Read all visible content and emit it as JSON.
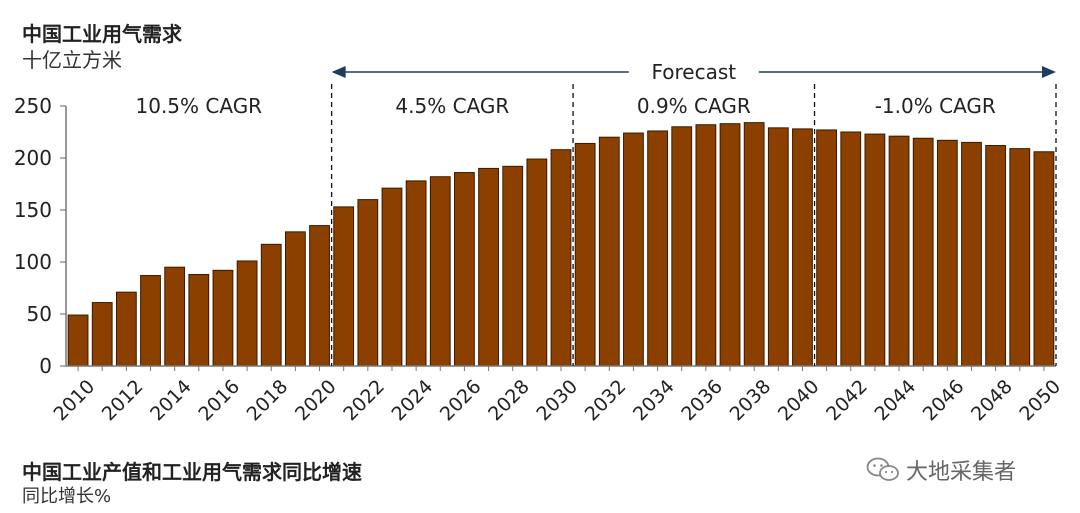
{
  "header": {
    "title": "中国工业用气需求",
    "unit": "十亿立方米"
  },
  "next_section": {
    "title": "中国工业产值和工业用气需求同比增速",
    "unit": "同比增长%"
  },
  "watermark": {
    "text": "大地采集者",
    "icon": "wechat-icon"
  },
  "colors": {
    "bar_fill": "#8B4000",
    "bar_stroke": "#3A1A00",
    "axis": "#777777",
    "arrow": "#1F3B5C",
    "text": "#222222"
  },
  "chart_data": {
    "type": "bar",
    "title": "中国工业用气需求",
    "ylabel": "十亿立方米",
    "xlabel": "",
    "ylim": [
      0,
      250
    ],
    "yticks": [
      0,
      50,
      100,
      150,
      200,
      250
    ],
    "categories": [
      2010,
      2011,
      2012,
      2013,
      2014,
      2015,
      2016,
      2017,
      2018,
      2019,
      2020,
      2021,
      2022,
      2023,
      2024,
      2025,
      2026,
      2027,
      2028,
      2029,
      2030,
      2031,
      2032,
      2033,
      2034,
      2035,
      2036,
      2037,
      2038,
      2039,
      2040,
      2041,
      2042,
      2043,
      2044,
      2045,
      2046,
      2047,
      2048,
      2049,
      2050
    ],
    "xtick_labels": [
      "2010",
      "2012",
      "2014",
      "2016",
      "2018",
      "2020",
      "2022",
      "2024",
      "2026",
      "2028",
      "2030",
      "2032",
      "2034",
      "2036",
      "2038",
      "2040",
      "2042",
      "2044",
      "2046",
      "2048",
      "2050"
    ],
    "values": [
      49,
      61,
      71,
      87,
      95,
      88,
      92,
      101,
      117,
      129,
      135,
      153,
      160,
      171,
      178,
      182,
      186,
      190,
      192,
      199,
      208,
      214,
      220,
      224,
      226,
      230,
      232,
      233,
      234,
      229,
      228,
      227,
      225,
      223,
      221,
      219,
      217,
      215,
      212,
      209,
      206
    ],
    "grid": false,
    "annotations": [
      {
        "text": "10.5% CAGR",
        "from": 2010,
        "to": 2020
      },
      {
        "text": "4.5% CAGR",
        "from": 2021,
        "to": 2030
      },
      {
        "text": "0.9% CAGR",
        "from": 2031,
        "to": 2040
      },
      {
        "text": "-1.0% CAGR",
        "from": 2041,
        "to": 2050
      }
    ],
    "period_dividers_after": [
      2020,
      2030,
      2040,
      2050
    ],
    "forecast": {
      "text": "Forecast",
      "from": 2021,
      "to": 2050
    }
  }
}
